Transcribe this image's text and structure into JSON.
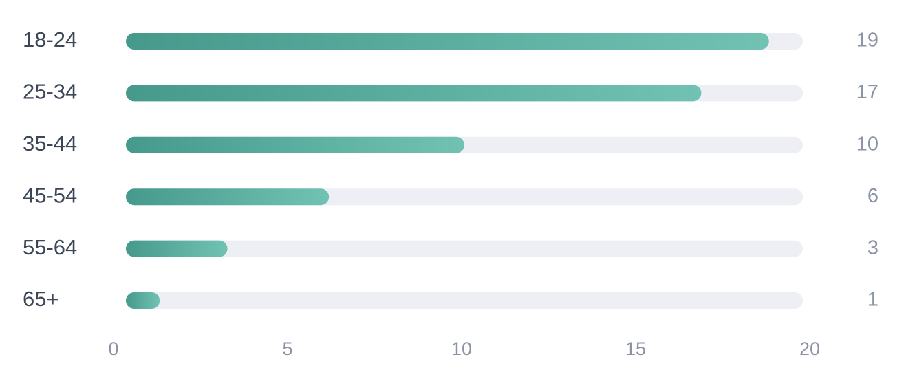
{
  "chart_data": {
    "type": "bar",
    "orientation": "horizontal",
    "categories": [
      "18-24",
      "25-34",
      "35-44",
      "45-54",
      "55-64",
      "65+"
    ],
    "values": [
      19,
      17,
      10,
      6,
      3,
      1
    ],
    "color": "#489a8c",
    "xlim": [
      0,
      20
    ],
    "xticks": [
      0,
      5,
      10,
      15,
      20
    ]
  }
}
